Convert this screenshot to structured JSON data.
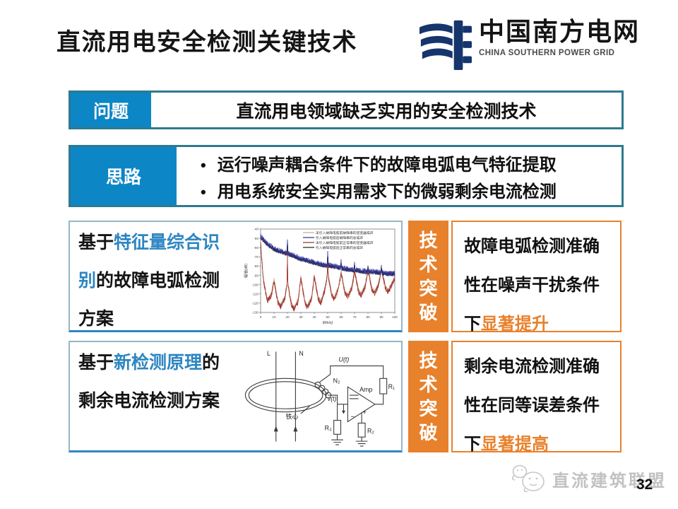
{
  "header": {
    "title": "直流用电安全检测关键技术",
    "logo_cn": "中国南方电网",
    "logo_en": "CHINA SOUTHERN POWER GRID"
  },
  "problem": {
    "label": "问题",
    "text": "直流用电领域缺乏实用的安全检测技术"
  },
  "approach": {
    "label": "思路",
    "bullet_glyph": "•",
    "bullets": [
      "运行噪声耦合条件下的故障电弧电气特征提取",
      "用电系统安全实用需求下的微弱剩余电流检测"
    ]
  },
  "rows": [
    {
      "desc_prefix": "基于",
      "desc_highlight": "特征量综合识别",
      "desc_suffix": "的故障电弧检测方案",
      "breakthrough_label": "技术突破",
      "result_text": "故障电弧检测准确性在噪声干扰条件下",
      "result_highlight": "显著提升"
    },
    {
      "desc_prefix": "基于",
      "desc_highlight": "新检测原理",
      "desc_suffix": "的剩余电流检测方案",
      "breakthrough_label": "技术突破",
      "result_text": "剩余电流检测准确性在同等误差条件下",
      "result_highlight": "显著提高"
    }
  ],
  "chart_data": {
    "type": "line",
    "title": "",
    "xlabel": "f(kHz)",
    "ylabel": "幅值(dB)",
    "xlim": [
      0,
      100
    ],
    "ylim": [
      -130,
      -40
    ],
    "x_ticks": [
      0,
      10,
      20,
      30,
      40,
      50,
      60,
      70,
      80,
      90,
      100
    ],
    "y_ticks": [
      -40,
      -50,
      -60,
      -70,
      -80,
      -90,
      -100,
      -110,
      -120,
      -130
    ],
    "grid": false,
    "legend_position": "top-right",
    "series": [
      {
        "name": "未引入故障电弧前故障串的逆变器噪声",
        "color": "#bfae8e",
        "band": "lower",
        "offset": 2,
        "amp": 2.2,
        "z": 1
      },
      {
        "name": "引入故障电弧后故障串的总噪声",
        "color": "#2b2f8e",
        "band": "upper",
        "offset": 0,
        "amp": 3.0,
        "z": 4
      },
      {
        "name": "未引入故障电弧前正常串的逆变器噪声",
        "color": "#9e2b25",
        "band": "lower",
        "offset": 0,
        "amp": 3.0,
        "z": 2
      },
      {
        "name": "引入故障电弧后正常串的总噪声",
        "color": "#1a1a1a",
        "band": "upper",
        "offset": -1,
        "amp": 2.0,
        "z": 3
      }
    ],
    "envelopes": {
      "upper": [
        [
          0,
          -48
        ],
        [
          5,
          -56
        ],
        [
          10,
          -61
        ],
        [
          15,
          -64
        ],
        [
          19.6,
          -66
        ],
        [
          20,
          -51
        ],
        [
          20.4,
          -66
        ],
        [
          25,
          -69
        ],
        [
          30,
          -72
        ],
        [
          35,
          -74
        ],
        [
          40,
          -76
        ],
        [
          45,
          -78
        ],
        [
          49.6,
          -79
        ],
        [
          50,
          -64
        ],
        [
          50.4,
          -79
        ],
        [
          55,
          -80
        ],
        [
          59.6,
          -82
        ],
        [
          60,
          -74
        ],
        [
          60.4,
          -82
        ],
        [
          65,
          -83
        ],
        [
          69.6,
          -84
        ],
        [
          70,
          -77
        ],
        [
          70.4,
          -84
        ],
        [
          75,
          -85
        ],
        [
          79.6,
          -86
        ],
        [
          80,
          -80
        ],
        [
          80.4,
          -86
        ],
        [
          85,
          -86
        ],
        [
          89.6,
          -87
        ],
        [
          90,
          -81
        ],
        [
          90.4,
          -87
        ],
        [
          95,
          -88
        ],
        [
          100,
          -88
        ]
      ],
      "lower": [
        [
          0,
          -55
        ],
        [
          2,
          -95
        ],
        [
          5,
          -118
        ],
        [
          8,
          -112
        ],
        [
          10,
          -96
        ],
        [
          13,
          -120
        ],
        [
          15,
          -124
        ],
        [
          18,
          -115
        ],
        [
          19.7,
          -100
        ],
        [
          20,
          -63
        ],
        [
          20.3,
          -100
        ],
        [
          23,
          -122
        ],
        [
          25,
          -127
        ],
        [
          28,
          -118
        ],
        [
          30,
          -93
        ],
        [
          33,
          -120
        ],
        [
          35,
          -125
        ],
        [
          38,
          -115
        ],
        [
          40,
          -92
        ],
        [
          43,
          -116
        ],
        [
          45,
          -120
        ],
        [
          48,
          -105
        ],
        [
          49.7,
          -90
        ],
        [
          50,
          -68
        ],
        [
          50.3,
          -90
        ],
        [
          53,
          -112
        ],
        [
          55,
          -116
        ],
        [
          58,
          -105
        ],
        [
          60,
          -88
        ],
        [
          63,
          -110
        ],
        [
          65,
          -113
        ],
        [
          68,
          -104
        ],
        [
          70,
          -86
        ],
        [
          73,
          -108
        ],
        [
          75,
          -112
        ],
        [
          78,
          -102
        ],
        [
          80,
          -84
        ],
        [
          83,
          -106
        ],
        [
          85,
          -110
        ],
        [
          88,
          -100
        ],
        [
          90,
          -83
        ],
        [
          93,
          -104
        ],
        [
          95,
          -108
        ],
        [
          98,
          -100
        ],
        [
          100,
          -93
        ]
      ]
    }
  },
  "circuit": {
    "l": "L",
    "n": "N",
    "n2": "N₂",
    "core": "铁心",
    "vt": "v(t)",
    "ut": "U(t)",
    "amp": "Amp",
    "r1": "R₁",
    "r2": "R₂",
    "r3": "R₃",
    "minus": "−",
    "plus": "+"
  },
  "footer": {
    "brand": "直流建筑联盟",
    "page": "32"
  },
  "colors": {
    "label_blue": "#0d86c6",
    "box_border_teal": "#2e7a8e",
    "highlight_blue": "#2e86c1",
    "orange": "#e8812c",
    "logo_navy": "#16356d",
    "footer_gray": "#c2c2c2"
  }
}
